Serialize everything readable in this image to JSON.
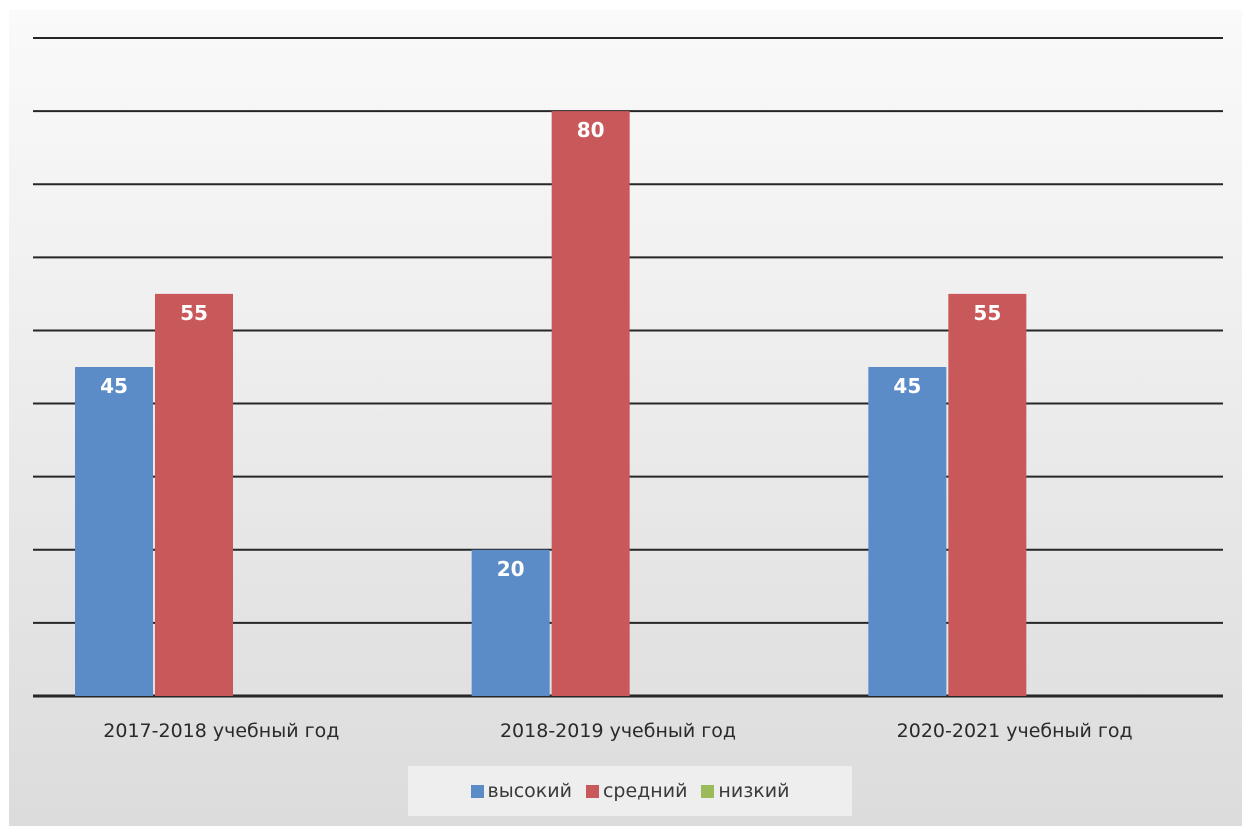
{
  "chart_data": {
    "type": "bar",
    "categories": [
      "2017-2018 учебный год",
      "2018-2019 учебный год",
      "2020-2021 учебный год"
    ],
    "series": [
      {
        "name": "высокий",
        "color": "#5b8cc8",
        "values": [
          45,
          20,
          45
        ]
      },
      {
        "name": "средний",
        "color": "#c9585a",
        "values": [
          55,
          80,
          55
        ]
      },
      {
        "name": "низкий",
        "color": "#9bbb59",
        "values": [
          0,
          0,
          0
        ]
      }
    ],
    "ylim": [
      0,
      90
    ],
    "grid": true,
    "legend_position": "bottom",
    "data_labels": true
  },
  "legend": {
    "items": [
      {
        "label": "высокий",
        "color": "#5b8cc8"
      },
      {
        "label": "средний",
        "color": "#c9585a"
      },
      {
        "label": "низкий",
        "color": "#9bbb59"
      }
    ]
  }
}
